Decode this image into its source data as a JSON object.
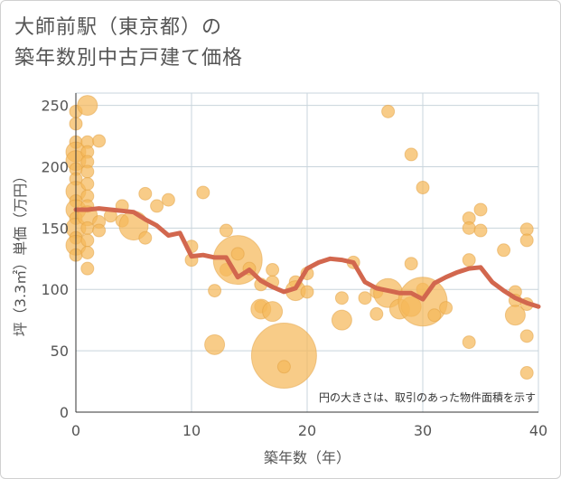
{
  "title_lines": [
    "大師前駅（東京都）の",
    "築年数別中古戸建て価格"
  ],
  "colors": {
    "bubble": "#f5b85a",
    "bubble_stroke": "#e2a040",
    "line": "#d2674e",
    "grid": "#c8d4dc",
    "plot_bg": "#ffffff"
  },
  "chart_data": {
    "type": "scatter",
    "title": "大師前駅（東京都）の築年数別中古戸建て価格",
    "xlabel": "築年数（年）",
    "ylabel": "坪（3.3㎡）単価（万円）",
    "xlim": [
      0,
      40
    ],
    "ylim": [
      0,
      260
    ],
    "x_ticks": [
      0,
      10,
      20,
      30,
      40
    ],
    "y_ticks": [
      0,
      50,
      100,
      150,
      200,
      250
    ],
    "note": "円の大きさは、取引のあった物件面積を示す",
    "grid": true,
    "points": [
      {
        "x": 0,
        "y": 245,
        "s": 1
      },
      {
        "x": 0,
        "y": 235,
        "s": 1
      },
      {
        "x": 0,
        "y": 220,
        "s": 1
      },
      {
        "x": 0,
        "y": 212,
        "s": 2
      },
      {
        "x": 0,
        "y": 205,
        "s": 2
      },
      {
        "x": 0,
        "y": 198,
        "s": 1
      },
      {
        "x": 0,
        "y": 190,
        "s": 1
      },
      {
        "x": 0,
        "y": 180,
        "s": 2
      },
      {
        "x": 0,
        "y": 172,
        "s": 1
      },
      {
        "x": 0,
        "y": 165,
        "s": 2
      },
      {
        "x": 0,
        "y": 158,
        "s": 1
      },
      {
        "x": 0,
        "y": 150,
        "s": 2
      },
      {
        "x": 0,
        "y": 142,
        "s": 1
      },
      {
        "x": 0,
        "y": 136,
        "s": 2
      },
      {
        "x": 0,
        "y": 128,
        "s": 1
      },
      {
        "x": 1,
        "y": 250,
        "s": 2
      },
      {
        "x": 1,
        "y": 220,
        "s": 1
      },
      {
        "x": 1,
        "y": 212,
        "s": 1
      },
      {
        "x": 1,
        "y": 204,
        "s": 1
      },
      {
        "x": 1,
        "y": 196,
        "s": 1
      },
      {
        "x": 1,
        "y": 186,
        "s": 1
      },
      {
        "x": 1,
        "y": 176,
        "s": 1
      },
      {
        "x": 1,
        "y": 168,
        "s": 1
      },
      {
        "x": 1,
        "y": 160,
        "s": 2
      },
      {
        "x": 1,
        "y": 150,
        "s": 1
      },
      {
        "x": 1,
        "y": 140,
        "s": 1
      },
      {
        "x": 1,
        "y": 130,
        "s": 1
      },
      {
        "x": 1,
        "y": 117,
        "s": 1
      },
      {
        "x": 2,
        "y": 221,
        "s": 1
      },
      {
        "x": 2,
        "y": 155,
        "s": 1
      },
      {
        "x": 2,
        "y": 148,
        "s": 1
      },
      {
        "x": 3,
        "y": 160,
        "s": 1
      },
      {
        "x": 4,
        "y": 168,
        "s": 1
      },
      {
        "x": 4,
        "y": 156,
        "s": 1
      },
      {
        "x": 5,
        "y": 152,
        "s": 3
      },
      {
        "x": 6,
        "y": 178,
        "s": 1
      },
      {
        "x": 6,
        "y": 142,
        "s": 1
      },
      {
        "x": 7,
        "y": 168,
        "s": 1
      },
      {
        "x": 8,
        "y": 173,
        "s": 1
      },
      {
        "x": 10,
        "y": 135,
        "s": 1
      },
      {
        "x": 10,
        "y": 124,
        "s": 1
      },
      {
        "x": 11,
        "y": 179,
        "s": 1
      },
      {
        "x": 12,
        "y": 99,
        "s": 1
      },
      {
        "x": 12,
        "y": 55,
        "s": 2
      },
      {
        "x": 13,
        "y": 148,
        "s": 1
      },
      {
        "x": 13,
        "y": 116,
        "s": 1
      },
      {
        "x": 14,
        "y": 124,
        "s": 4
      },
      {
        "x": 14,
        "y": 129,
        "s": 1
      },
      {
        "x": 15,
        "y": 117,
        "s": 1
      },
      {
        "x": 16,
        "y": 104,
        "s": 1
      },
      {
        "x": 16,
        "y": 86,
        "s": 1
      },
      {
        "x": 16,
        "y": 84,
        "s": 2
      },
      {
        "x": 17,
        "y": 116,
        "s": 1
      },
      {
        "x": 17,
        "y": 106,
        "s": 1
      },
      {
        "x": 17,
        "y": 82,
        "s": 2
      },
      {
        "x": 18,
        "y": 46,
        "s": 5
      },
      {
        "x": 18,
        "y": 37,
        "s": 1
      },
      {
        "x": 19,
        "y": 106,
        "s": 1
      },
      {
        "x": 19,
        "y": 99,
        "s": 2
      },
      {
        "x": 20,
        "y": 113,
        "s": 1
      },
      {
        "x": 20,
        "y": 98,
        "s": 1
      },
      {
        "x": 23,
        "y": 93,
        "s": 1
      },
      {
        "x": 23,
        "y": 75,
        "s": 2
      },
      {
        "x": 24,
        "y": 122,
        "s": 1
      },
      {
        "x": 25,
        "y": 93,
        "s": 1
      },
      {
        "x": 26,
        "y": 98,
        "s": 1
      },
      {
        "x": 26,
        "y": 80,
        "s": 1
      },
      {
        "x": 27,
        "y": 245,
        "s": 1
      },
      {
        "x": 27,
        "y": 97,
        "s": 3
      },
      {
        "x": 28,
        "y": 84,
        "s": 2
      },
      {
        "x": 29,
        "y": 210,
        "s": 1
      },
      {
        "x": 29,
        "y": 121,
        "s": 1
      },
      {
        "x": 29,
        "y": 86,
        "s": 2
      },
      {
        "x": 30,
        "y": 183,
        "s": 1
      },
      {
        "x": 30,
        "y": 100,
        "s": 1
      },
      {
        "x": 30,
        "y": 90,
        "s": 4
      },
      {
        "x": 31,
        "y": 79,
        "s": 1
      },
      {
        "x": 32,
        "y": 85,
        "s": 1
      },
      {
        "x": 34,
        "y": 158,
        "s": 1
      },
      {
        "x": 34,
        "y": 150,
        "s": 1
      },
      {
        "x": 34,
        "y": 124,
        "s": 1
      },
      {
        "x": 34,
        "y": 57,
        "s": 1
      },
      {
        "x": 35,
        "y": 165,
        "s": 1
      },
      {
        "x": 35,
        "y": 148,
        "s": 1
      },
      {
        "x": 37,
        "y": 132,
        "s": 1
      },
      {
        "x": 38,
        "y": 98,
        "s": 1
      },
      {
        "x": 38,
        "y": 91,
        "s": 1
      },
      {
        "x": 38,
        "y": 79,
        "s": 2
      },
      {
        "x": 39,
        "y": 149,
        "s": 1
      },
      {
        "x": 39,
        "y": 140,
        "s": 1
      },
      {
        "x": 39,
        "y": 88,
        "s": 1
      },
      {
        "x": 39,
        "y": 62,
        "s": 1
      },
      {
        "x": 39,
        "y": 32,
        "s": 1
      }
    ],
    "series": [
      {
        "x": [
          0,
          1,
          2,
          3,
          4,
          5,
          6,
          7,
          8,
          9,
          10,
          11,
          12,
          13,
          14,
          15,
          16,
          17,
          18,
          19,
          20,
          21,
          22,
          23,
          24,
          25,
          26,
          27,
          28,
          29,
          30,
          31,
          32,
          33,
          34,
          35,
          36,
          37,
          38,
          39,
          40
        ],
        "y": [
          165,
          165,
          166,
          165,
          164,
          163,
          157,
          152,
          144,
          146,
          127,
          128,
          126,
          126,
          110,
          116,
          107,
          102,
          98,
          101,
          117,
          122,
          125,
          124,
          122,
          106,
          101,
          99,
          97,
          97,
          92,
          105,
          110,
          114,
          117,
          118,
          106,
          99,
          93,
          89,
          86
        ]
      }
    ]
  }
}
